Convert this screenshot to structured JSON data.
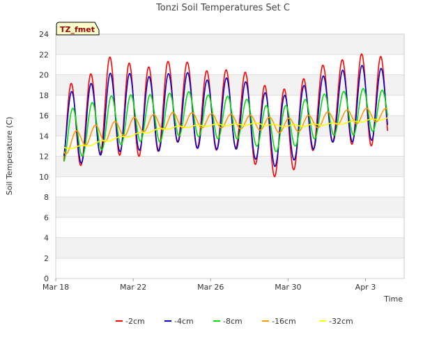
{
  "chart_data": {
    "type": "line",
    "title": "Tonzi Soil Temperatures Set C",
    "xlabel": "Time",
    "ylabel": "Soil Temperature (C)",
    "badge_text": "TZ_fmet",
    "x_ticks": [
      "Mar 18",
      "Mar 22",
      "Mar 26",
      "Mar 30",
      "Apr 3"
    ],
    "x_tick_days": [
      0,
      4,
      8,
      12,
      16
    ],
    "xlim_days": [
      0,
      18
    ],
    "ylim": [
      0,
      24
    ],
    "y_ticks": [
      0,
      2,
      4,
      6,
      8,
      10,
      12,
      14,
      16,
      18,
      20,
      22,
      24
    ],
    "grid": true,
    "legend_position": "bottom",
    "series": [
      {
        "name": "-2cm",
        "color": "#ff0000",
        "mean": [
          14.7,
          15.3,
          17.2,
          16.7,
          16.3,
          16.9,
          17.6,
          16.5,
          16.5,
          16.8,
          15.0,
          14.1,
          15.0,
          16.9,
          17.4,
          17.5,
          17.7,
          16.3,
          16.9,
          14.0,
          13.1
        ],
        "amp": [
          4.4,
          4.0,
          4.7,
          4.7,
          4.3,
          4.3,
          4.0,
          3.9,
          3.9,
          3.9,
          4.2,
          4.3,
          4.1,
          3.9,
          3.9,
          4.4,
          4.7,
          4.1,
          4.1,
          3.2,
          3.2
        ],
        "min_lag": 0.3
      },
      {
        "name": "-4cm",
        "color": "#0000cc",
        "mean": [
          14.8,
          15.0,
          16.2,
          16.4,
          16.2,
          16.2,
          17.1,
          16.0,
          16.2,
          16.2,
          15.0,
          14.3,
          15.2,
          16.3,
          16.9,
          17.1,
          17.4,
          16.1,
          16.1,
          13.8,
          13.0
        ],
        "amp": [
          3.4,
          3.7,
          3.9,
          3.9,
          3.6,
          3.7,
          3.5,
          3.4,
          3.5,
          3.5,
          3.5,
          3.4,
          3.4,
          3.4,
          3.4,
          3.7,
          3.8,
          3.3,
          3.3,
          2.6,
          2.6
        ],
        "min_lag": 0.32
      },
      {
        "name": "-8cm",
        "color": "#00dd00",
        "mean": [
          14.0,
          14.5,
          15.3,
          15.6,
          15.8,
          15.7,
          16.3,
          16.0,
          15.8,
          15.8,
          15.0,
          14.6,
          15.2,
          15.9,
          16.2,
          16.3,
          16.7,
          15.8,
          15.6,
          14.0,
          13.5
        ],
        "amp": [
          2.6,
          2.4,
          2.6,
          2.4,
          2.3,
          2.3,
          2.2,
          2.1,
          2.1,
          2.1,
          2.1,
          2.2,
          2.1,
          2.1,
          2.1,
          2.2,
          2.2,
          2.0,
          1.8,
          1.3,
          1.3
        ],
        "min_lag": 0.38
      },
      {
        "name": "-16cm",
        "color": "#ff9900",
        "mean": [
          13.1,
          14.0,
          14.3,
          14.8,
          15.2,
          15.4,
          15.6,
          15.5,
          15.5,
          15.4,
          15.3,
          15.0,
          15.1,
          15.5,
          15.8,
          15.9,
          16.1,
          15.9,
          15.8,
          14.8,
          14.2
        ],
        "amp": [
          0.9,
          0.9,
          0.9,
          0.8,
          0.8,
          0.8,
          0.8,
          0.7,
          0.7,
          0.7,
          0.7,
          0.7,
          0.7,
          0.7,
          0.7,
          0.7,
          0.7,
          0.7,
          0.6,
          0.4,
          0.4
        ],
        "min_lag": 0.55
      },
      {
        "name": "-32cm",
        "color": "#ffff00",
        "mean": [
          12.8,
          13.0,
          13.5,
          13.9,
          14.3,
          14.7,
          14.9,
          15.0,
          15.1,
          15.1,
          15.2,
          15.0,
          15.0,
          15.1,
          15.2,
          15.4,
          15.6,
          15.8,
          15.6,
          15.2,
          14.6
        ],
        "amp": [
          0.1,
          0.1,
          0.1,
          0.1,
          0.1,
          0.1,
          0.1,
          0.1,
          0.1,
          0.1,
          0.1,
          0.1,
          0.1,
          0.1,
          0.1,
          0.1,
          0.1,
          0.1,
          0.1,
          0.1,
          0.1
        ],
        "min_lag": 0.8
      }
    ]
  }
}
